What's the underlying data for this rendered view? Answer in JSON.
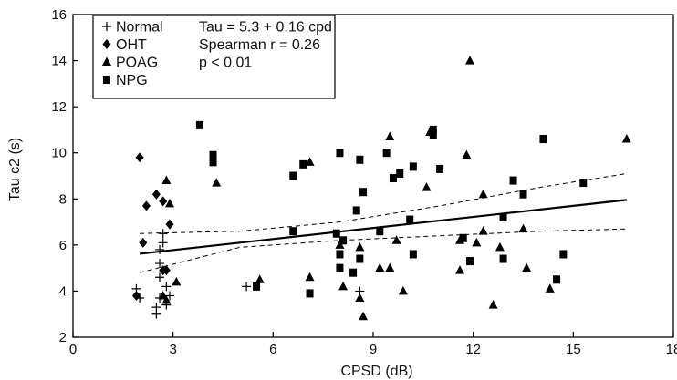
{
  "chart_data": {
    "type": "scatter",
    "xlabel": "CPSD (dB)",
    "ylabel": "Tau c2 (s)",
    "xlim": [
      0,
      18
    ],
    "ylim": [
      2,
      16
    ],
    "xticks": [
      0,
      3,
      6,
      9,
      12,
      15,
      18
    ],
    "yticks": [
      2,
      4,
      6,
      8,
      10,
      12,
      14,
      16
    ],
    "grid": false,
    "legend_position": "top-left",
    "series": [
      {
        "name": "Normal",
        "marker": "plus",
        "points": [
          [
            1.9,
            4.1
          ],
          [
            2.0,
            3.7
          ],
          [
            2.5,
            3.0
          ],
          [
            2.5,
            3.3
          ],
          [
            2.6,
            3.7
          ],
          [
            2.6,
            4.6
          ],
          [
            2.6,
            5.2
          ],
          [
            2.6,
            5.8
          ],
          [
            2.7,
            6.1
          ],
          [
            2.7,
            6.5
          ],
          [
            2.8,
            4.2
          ],
          [
            2.8,
            3.4
          ],
          [
            2.9,
            3.8
          ],
          [
            5.2,
            4.2
          ],
          [
            8.6,
            4.0
          ]
        ]
      },
      {
        "name": "OHT",
        "marker": "diamond",
        "points": [
          [
            1.9,
            3.8
          ],
          [
            2.0,
            9.8
          ],
          [
            2.1,
            6.1
          ],
          [
            2.2,
            7.7
          ],
          [
            2.5,
            8.2
          ],
          [
            2.7,
            7.9
          ],
          [
            2.7,
            4.9
          ],
          [
            2.8,
            4.9
          ],
          [
            2.9,
            6.9
          ]
        ]
      },
      {
        "name": "POAG",
        "marker": "triangle",
        "points": [
          [
            2.7,
            3.8
          ],
          [
            2.8,
            3.6
          ],
          [
            2.8,
            8.8
          ],
          [
            2.9,
            7.8
          ],
          [
            3.1,
            4.4
          ],
          [
            4.3,
            8.7
          ],
          [
            5.6,
            4.5
          ],
          [
            7.1,
            9.6
          ],
          [
            7.1,
            4.6
          ],
          [
            8.0,
            6.0
          ],
          [
            8.1,
            4.2
          ],
          [
            8.6,
            5.9
          ],
          [
            8.6,
            3.7
          ],
          [
            8.7,
            2.9
          ],
          [
            9.2,
            5.0
          ],
          [
            9.5,
            10.7
          ],
          [
            9.5,
            5.0
          ],
          [
            9.7,
            6.2
          ],
          [
            9.9,
            4.0
          ],
          [
            10.6,
            8.5
          ],
          [
            10.7,
            10.9
          ],
          [
            11.6,
            6.2
          ],
          [
            11.6,
            4.9
          ],
          [
            11.8,
            9.9
          ],
          [
            11.9,
            14.0
          ],
          [
            12.1,
            6.1
          ],
          [
            12.3,
            8.2
          ],
          [
            12.3,
            6.6
          ],
          [
            12.6,
            3.4
          ],
          [
            12.8,
            5.9
          ],
          [
            13.5,
            6.7
          ],
          [
            13.6,
            5.0
          ],
          [
            14.3,
            4.1
          ],
          [
            16.6,
            10.6
          ]
        ]
      },
      {
        "name": "NPG",
        "marker": "square",
        "points": [
          [
            3.8,
            11.2
          ],
          [
            4.2,
            9.9
          ],
          [
            4.2,
            9.6
          ],
          [
            5.5,
            4.2
          ],
          [
            6.6,
            9.0
          ],
          [
            6.6,
            6.6
          ],
          [
            6.9,
            9.5
          ],
          [
            7.1,
            3.9
          ],
          [
            7.9,
            6.5
          ],
          [
            8.0,
            10.0
          ],
          [
            8.0,
            5.6
          ],
          [
            8.0,
            5.0
          ],
          [
            8.1,
            6.2
          ],
          [
            8.4,
            4.8
          ],
          [
            8.5,
            7.5
          ],
          [
            8.6,
            9.7
          ],
          [
            8.6,
            5.4
          ],
          [
            8.7,
            8.3
          ],
          [
            9.2,
            6.6
          ],
          [
            9.4,
            10.0
          ],
          [
            9.6,
            8.9
          ],
          [
            9.8,
            9.1
          ],
          [
            10.1,
            7.1
          ],
          [
            10.2,
            5.6
          ],
          [
            10.2,
            9.4
          ],
          [
            10.8,
            11.0
          ],
          [
            10.8,
            10.8
          ],
          [
            11.0,
            9.3
          ],
          [
            11.7,
            6.3
          ],
          [
            11.9,
            5.3
          ],
          [
            12.9,
            7.2
          ],
          [
            12.9,
            5.4
          ],
          [
            13.2,
            8.8
          ],
          [
            13.5,
            8.2
          ],
          [
            14.1,
            10.6
          ],
          [
            14.5,
            4.5
          ],
          [
            14.7,
            5.6
          ],
          [
            15.3,
            8.7
          ]
        ]
      }
    ],
    "regression": {
      "x_start": 2.0,
      "x_end": 16.6,
      "intercept": 5.3,
      "slope": 0.16
    },
    "confidence_band": {
      "upper": [
        [
          2.0,
          6.5
        ],
        [
          5.0,
          6.6
        ],
        [
          8.0,
          7.0
        ],
        [
          11.0,
          7.7
        ],
        [
          14.0,
          8.5
        ],
        [
          16.6,
          9.1
        ]
      ],
      "lower": [
        [
          2.0,
          4.8
        ],
        [
          5.0,
          5.9
        ],
        [
          8.0,
          6.2
        ],
        [
          11.0,
          6.4
        ],
        [
          14.0,
          6.6
        ],
        [
          16.6,
          6.7
        ]
      ]
    },
    "annotations": [
      "Tau = 5.3 + 0.16 cpd",
      "Spearman r = 0.26",
      "p < 0.01"
    ]
  }
}
